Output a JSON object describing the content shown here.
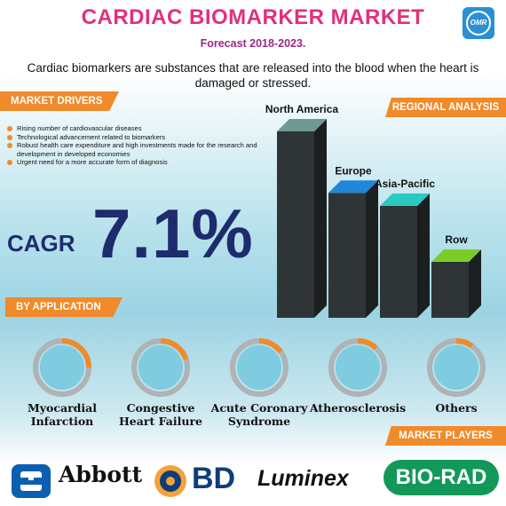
{
  "header": {
    "title": "CARDIAC BIOMARKER MARKET",
    "subtitle": "Forecast 2018-2023.",
    "logo_text": "OMR"
  },
  "intro": "Cardiac biomarkers are substances that are released into the blood when the heart is damaged or stressed.",
  "market_drivers": {
    "heading": "MARKET DRIVERS",
    "items": [
      "Rising number of cardiovascular diseases",
      "Technological advancement related to biomarkers",
      "Robust health care expenditure and high investments made for the research and development in developed economies",
      "Urgent need for a more accurate form of diagnosis"
    ]
  },
  "cagr": {
    "label": "CAGR",
    "value": "7.1%"
  },
  "regional_analysis": {
    "heading": "REGIONAL ANALYSIS",
    "regions": [
      {
        "name": "North America",
        "level": 1.0,
        "top_color": "#6f9a93"
      },
      {
        "name": "Europe",
        "level": 0.67,
        "top_color": "#1f86d8"
      },
      {
        "name": "Asia-Pacific",
        "level": 0.6,
        "top_color": "#2bc9c0"
      },
      {
        "name": "Row",
        "level": 0.3,
        "top_color": "#7ccc27"
      }
    ]
  },
  "by_application": {
    "heading": "BY APPLICATION",
    "items": [
      {
        "label": "Myocardial Infarction",
        "share": 0.25
      },
      {
        "label": "Congestive Heart Failure",
        "share": 0.2
      },
      {
        "label": "Acute Coronary Syndrome",
        "share": 0.15
      },
      {
        "label": "Atherosclerosis",
        "share": 0.12
      },
      {
        "label": "Others",
        "share": 0.1
      }
    ]
  },
  "market_players": {
    "heading": "MARKET PLAYERS",
    "brands": [
      "Abbott",
      "BD",
      "Luminex",
      "BIO-RAD"
    ]
  },
  "colors": {
    "title": "#e0317a",
    "subtitle": "#9a2a86",
    "accent": "#f08a2a",
    "cagr": "#1e2c6e"
  }
}
